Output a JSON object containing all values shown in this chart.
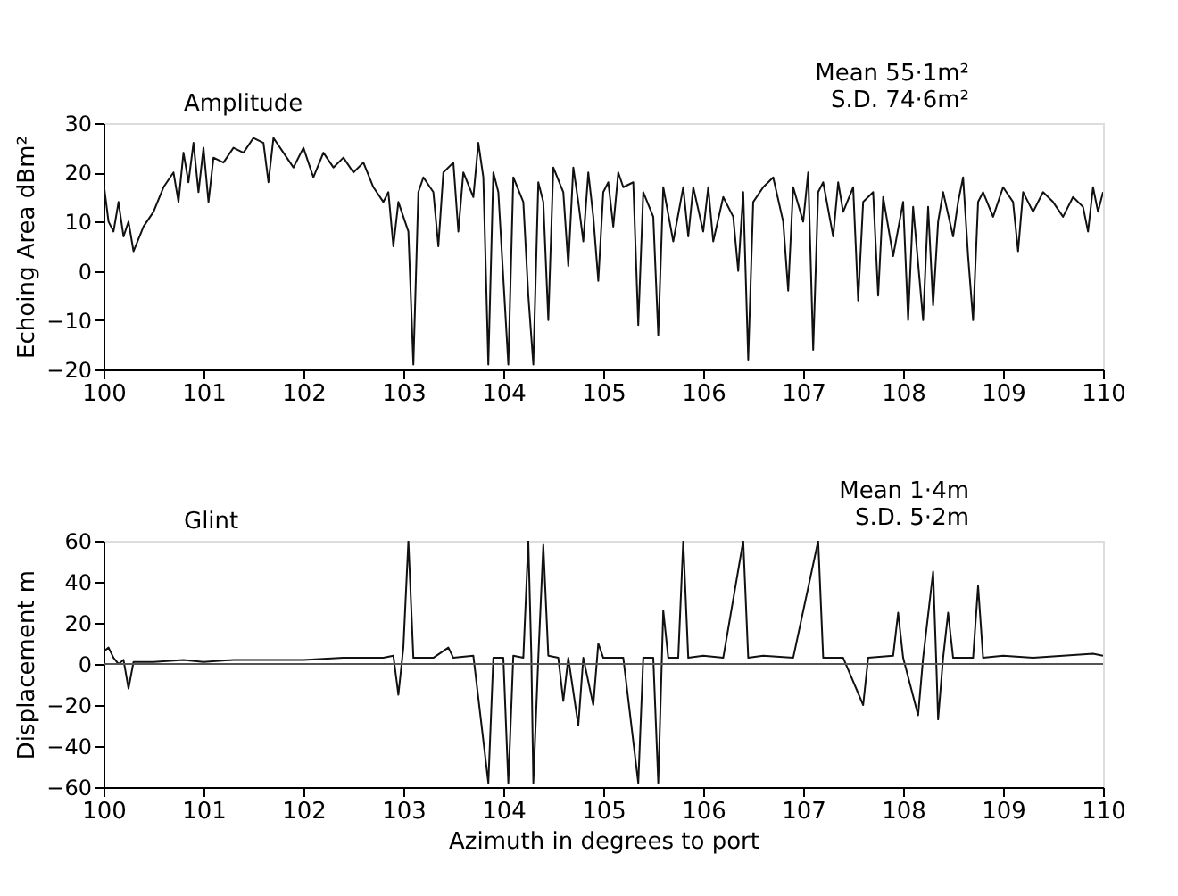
{
  "chart_data": [
    {
      "type": "line",
      "title": "Amplitude",
      "ylabel": "Echoing Area dBm²",
      "annotations": [
        "Mean  55·1m²",
        "S.D.  74·6m²"
      ],
      "xlim": [
        100,
        110
      ],
      "xticks": [
        100,
        101,
        102,
        103,
        104,
        105,
        106,
        107,
        108,
        109,
        110
      ],
      "ylim": [
        -20,
        30
      ],
      "yticks": [
        -20,
        -10,
        0,
        10,
        20,
        30
      ],
      "grid": false,
      "marker": "none",
      "line_style": "solid",
      "series": [
        {
          "color": "#111111",
          "x": [
            100.0,
            100.05,
            100.1,
            100.15,
            100.2,
            100.25,
            100.3,
            100.4,
            100.5,
            100.6,
            100.7,
            100.75,
            100.8,
            100.85,
            100.9,
            100.95,
            101.0,
            101.05,
            101.1,
            101.2,
            101.3,
            101.4,
            101.5,
            101.6,
            101.65,
            101.7,
            101.8,
            101.9,
            102.0,
            102.1,
            102.2,
            102.3,
            102.4,
            102.5,
            102.6,
            102.7,
            102.8,
            102.85,
            102.9,
            102.95,
            103.0,
            103.05,
            103.1,
            103.15,
            103.2,
            103.3,
            103.35,
            103.4,
            103.5,
            103.55,
            103.6,
            103.7,
            103.75,
            103.8,
            103.85,
            103.9,
            103.95,
            104.05,
            104.1,
            104.2,
            104.25,
            104.3,
            104.35,
            104.4,
            104.45,
            104.5,
            104.6,
            104.65,
            104.7,
            104.75,
            104.8,
            104.85,
            104.9,
            104.95,
            105.0,
            105.05,
            105.1,
            105.15,
            105.2,
            105.3,
            105.35,
            105.4,
            105.5,
            105.55,
            105.6,
            105.7,
            105.8,
            105.85,
            105.9,
            106.0,
            106.05,
            106.1,
            106.2,
            106.3,
            106.35,
            106.4,
            106.45,
            106.5,
            106.6,
            106.7,
            106.8,
            106.85,
            106.9,
            107.0,
            107.05,
            107.1,
            107.15,
            107.2,
            107.3,
            107.35,
            107.4,
            107.5,
            107.55,
            107.6,
            107.7,
            107.75,
            107.8,
            107.9,
            108.0,
            108.05,
            108.1,
            108.2,
            108.25,
            108.3,
            108.35,
            108.4,
            108.5,
            108.55,
            108.6,
            108.65,
            108.7,
            108.75,
            108.8,
            108.9,
            109.0,
            109.1,
            109.15,
            109.2,
            109.3,
            109.4,
            109.5,
            109.6,
            109.7,
            109.8,
            109.85,
            109.9,
            109.95,
            110.0
          ],
          "values": [
            18,
            10,
            8,
            14,
            7,
            10,
            4,
            9,
            12,
            17,
            20,
            14,
            24,
            18,
            26,
            16,
            25,
            14,
            23,
            22,
            25,
            24,
            27,
            26,
            18,
            27,
            24,
            21,
            25,
            19,
            24,
            21,
            23,
            20,
            22,
            17,
            14,
            16,
            5,
            14,
            11,
            8,
            -19,
            16,
            19,
            16,
            5,
            20,
            22,
            8,
            20,
            15,
            26,
            19,
            -19,
            20,
            16,
            -19,
            19,
            14,
            -5,
            -19,
            18,
            14,
            -10,
            21,
            16,
            1,
            21,
            14,
            6,
            20,
            11,
            -2,
            16,
            18,
            9,
            20,
            17,
            18,
            -11,
            16,
            11,
            -13,
            17,
            6,
            17,
            7,
            17,
            8,
            17,
            6,
            15,
            11,
            0,
            16,
            -18,
            14,
            17,
            19,
            10,
            -4,
            17,
            10,
            20,
            -16,
            16,
            18,
            7,
            18,
            12,
            17,
            -6,
            14,
            16,
            -5,
            15,
            3,
            14,
            -10,
            13,
            -10,
            13,
            -7,
            10,
            16,
            7,
            14,
            19,
            3,
            -10,
            14,
            16,
            11,
            17,
            14,
            4,
            16,
            12,
            16,
            14,
            11,
            15,
            13,
            8,
            17,
            12,
            16
          ]
        }
      ]
    },
    {
      "type": "line",
      "title": "Glint",
      "xlabel": "Azimuth in degrees to port",
      "ylabel": "Displacement  m",
      "annotations": [
        "Mean  1·4m",
        "S.D.  5·2m"
      ],
      "xlim": [
        100,
        110
      ],
      "xticks": [
        100,
        101,
        102,
        103,
        104,
        105,
        106,
        107,
        108,
        109,
        110
      ],
      "ylim": [
        -60,
        60
      ],
      "yticks": [
        -60,
        -40,
        -20,
        0,
        20,
        40,
        60
      ],
      "grid": false,
      "marker": "none",
      "line_style": "solid",
      "ref_lines": [
        {
          "axis": "y",
          "value": 0,
          "color": "#555555"
        }
      ],
      "series": [
        {
          "color": "#111111",
          "x": [
            100.0,
            100.05,
            100.1,
            100.15,
            100.2,
            100.25,
            100.3,
            100.5,
            100.8,
            101.0,
            101.3,
            101.6,
            102.0,
            102.4,
            102.8,
            102.9,
            102.95,
            103.0,
            103.05,
            103.1,
            103.3,
            103.45,
            103.5,
            103.7,
            103.85,
            103.9,
            104.0,
            104.05,
            104.1,
            104.2,
            104.25,
            104.28,
            104.3,
            104.35,
            104.4,
            104.45,
            104.55,
            104.6,
            104.65,
            104.75,
            104.8,
            104.9,
            104.95,
            105.0,
            105.2,
            105.35,
            105.4,
            105.5,
            105.55,
            105.6,
            105.65,
            105.75,
            105.8,
            105.85,
            106.0,
            106.2,
            106.4,
            106.45,
            106.6,
            106.9,
            107.15,
            107.2,
            107.4,
            107.6,
            107.65,
            107.9,
            107.95,
            108.0,
            108.15,
            108.2,
            108.3,
            108.33,
            108.35,
            108.4,
            108.45,
            108.5,
            108.7,
            108.75,
            108.8,
            109.0,
            109.3,
            109.6,
            109.9,
            110.0
          ],
          "values": [
            6,
            8,
            3,
            0,
            2,
            -12,
            1,
            1,
            2,
            1,
            2,
            2,
            2,
            3,
            3,
            4,
            -15,
            8,
            60,
            3,
            3,
            8,
            3,
            4,
            -58,
            3,
            3,
            -58,
            4,
            3,
            60,
            4,
            -58,
            3,
            58,
            4,
            3,
            -18,
            3,
            -30,
            3,
            -20,
            10,
            3,
            3,
            -58,
            3,
            3,
            -58,
            26,
            3,
            3,
            60,
            3,
            4,
            3,
            60,
            3,
            4,
            3,
            60,
            3,
            3,
            -20,
            3,
            4,
            25,
            3,
            -25,
            3,
            45,
            3,
            -27,
            3,
            25,
            3,
            3,
            38,
            3,
            4,
            3,
            4,
            5,
            4
          ]
        }
      ]
    }
  ]
}
